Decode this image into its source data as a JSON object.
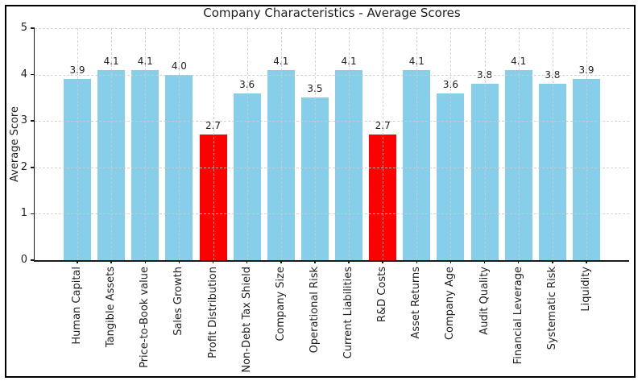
{
  "figure": {
    "background": "#ffffff",
    "frame_color": "#000000"
  },
  "chart_data": {
    "type": "bar",
    "title": "Company Characteristics - Average Scores",
    "xlabel": "",
    "ylabel": "Average Score",
    "ylim": [
      0,
      5
    ],
    "yticks": [
      0,
      1,
      2,
      3,
      4,
      5
    ],
    "grid": true,
    "grid_style": "dashed",
    "legend_position": "none",
    "categories": [
      "Human Capital",
      "Tangible Assets",
      "Price-to-Book value",
      "Sales Growth",
      "Profit Distribution",
      "Non-Debt Tax Shield",
      "Company Size",
      "Operational Risk",
      "Current Liabilities",
      "R&D Costs",
      "Asset Returns",
      "Company Age",
      "Audit Quality",
      "Financial Leverage",
      "Systematic Risk",
      "Liquidity"
    ],
    "values": [
      3.9,
      4.1,
      4.1,
      4.0,
      2.7,
      3.6,
      4.1,
      3.5,
      4.1,
      2.7,
      4.1,
      3.6,
      3.8,
      4.1,
      3.8,
      3.9
    ],
    "bar_labels": [
      "3.9",
      "4.1",
      "4.1",
      "4.0",
      "2.7",
      "3.6",
      "4.1",
      "3.5",
      "4.1",
      "2.7",
      "4.1",
      "3.6",
      "3.8",
      "4.1",
      "3.8",
      "3.9"
    ],
    "bar_color": "#87CEEB",
    "highlight_color": "#FF0000",
    "highlight_indices": [
      4,
      9
    ],
    "grid_color": "#cccccc",
    "axis_color": "#1a1a1a",
    "text_color": "#1f1f1f"
  }
}
